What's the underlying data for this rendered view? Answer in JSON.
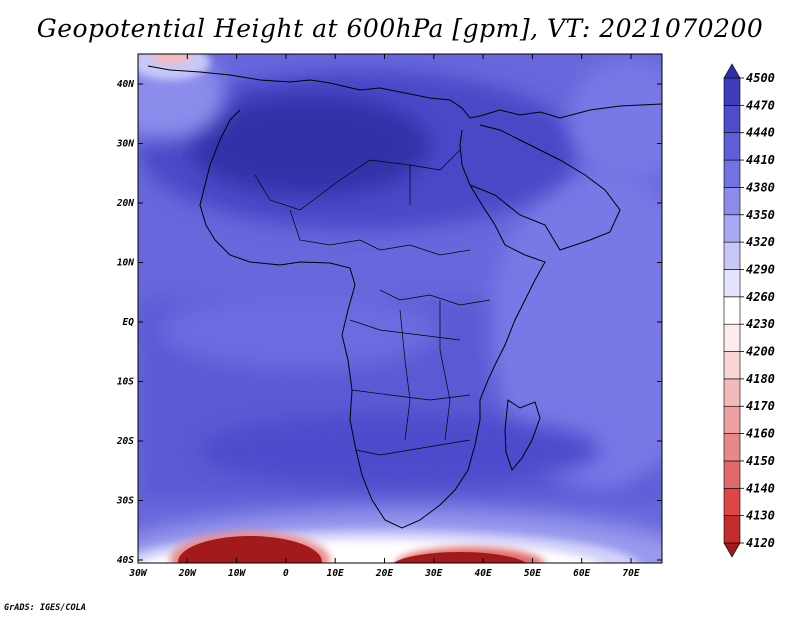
{
  "title": "Geopotential Height at 600hPa [gpm], VT: 2021070200",
  "footer": "GrADS: IGES/COLA",
  "axes": {
    "x_ticks": [
      "30W",
      "20W",
      "10W",
      "0",
      "10E",
      "20E",
      "30E",
      "40E",
      "50E",
      "60E",
      "70E"
    ],
    "y_ticks": [
      "40N",
      "30N",
      "20N",
      "10N",
      "EQ",
      "10S",
      "20S",
      "30S",
      "40S"
    ]
  },
  "colorbar": {
    "labels": [
      "4120",
      "4130",
      "4140",
      "4150",
      "4160",
      "4170",
      "4180",
      "4200",
      "4230",
      "4260",
      "4290",
      "4320",
      "4350",
      "4380",
      "4410",
      "4440",
      "4470",
      "4500"
    ],
    "colors": [
      "#a21a1a",
      "#c22c2c",
      "#dc4848",
      "#e06a6a",
      "#e88888",
      "#eea0a0",
      "#f4baba",
      "#f8d4d4",
      "#fcecec",
      "#ffffff",
      "#e4e4fc",
      "#c8c8f8",
      "#a8a8f2",
      "#8c8cec",
      "#7272e2",
      "#5e5ed8",
      "#4c4ccc",
      "#3c3cbc",
      "#2e2ea8"
    ]
  }
}
